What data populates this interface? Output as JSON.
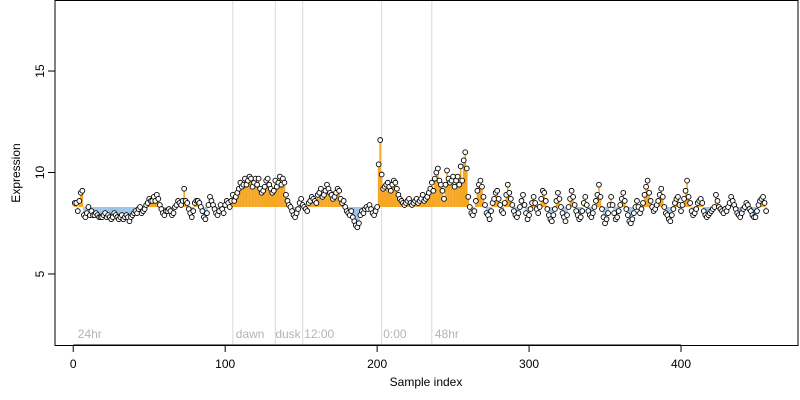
{
  "chart_data": {
    "type": "scatter",
    "title": "",
    "xlabel": "Sample index",
    "ylabel": "Expression",
    "xlim": [
      -12,
      477
    ],
    "ylim": [
      1.5,
      18.5
    ],
    "x_ticks": [
      0,
      100,
      200,
      300,
      400
    ],
    "y_ticks": [
      5,
      10,
      15
    ],
    "grid": false,
    "colors": {
      "baseline_low": "#9dc3e6",
      "baseline_high": "#f5a623",
      "point_edge": "#000000",
      "vertical_line": "#d9d9d9",
      "annotation_text": "#b4b4b4"
    },
    "baseline": 8.3,
    "vertical_lines": [
      105,
      133,
      151,
      203,
      236
    ],
    "annotations": [
      {
        "x": 3,
        "text": "24hr"
      },
      {
        "x": 107,
        "text": "dawn"
      },
      {
        "x": 133,
        "text": "dusk"
      },
      {
        "x": 152,
        "text": "12:00"
      },
      {
        "x": 204,
        "text": "0:00"
      },
      {
        "x": 238,
        "text": "48hr"
      }
    ],
    "series": [
      {
        "x_start": 1,
        "x_step": 1,
        "y": [
          8.5,
          8.5,
          8.1,
          8.6,
          9.0,
          9.1,
          7.9,
          7.8,
          8.0,
          8.3,
          7.9,
          8.1,
          7.9,
          7.9,
          8.0,
          7.9,
          7.8,
          7.8,
          7.8,
          7.9,
          8.0,
          7.8,
          7.9,
          7.8,
          7.7,
          7.8,
          8.0,
          7.9,
          7.8,
          7.7,
          7.8,
          7.9,
          7.7,
          7.8,
          7.9,
          7.8,
          7.6,
          7.8,
          7.9,
          8.0,
          8.1,
          8.0,
          8.2,
          8.3,
          8.0,
          8.1,
          8.2,
          8.4,
          8.5,
          8.7,
          8.6,
          8.6,
          8.8,
          8.6,
          8.9,
          8.7,
          8.4,
          8.2,
          8.0,
          7.9,
          8.1,
          8.1,
          8.2,
          8.1,
          7.9,
          8.0,
          8.3,
          8.4,
          8.6,
          8.5,
          8.4,
          8.6,
          9.2,
          8.6,
          8.5,
          8.2,
          8.0,
          7.8,
          8.1,
          8.5,
          8.6,
          8.6,
          8.5,
          8.3,
          8.1,
          7.8,
          7.7,
          8.0,
          8.4,
          8.8,
          8.6,
          8.4,
          8.2,
          8.0,
          7.9,
          8.1,
          8.4,
          8.2,
          8.0,
          8.4,
          8.6,
          8.5,
          8.3,
          8.6,
          8.9,
          8.6,
          8.8,
          9.0,
          9.2,
          9.5,
          9.3,
          9.4,
          9.7,
          9.4,
          9.6,
          9.8,
          9.7,
          9.3,
          9.5,
          9.7,
          9.4,
          9.7,
          9.2,
          9.0,
          9.1,
          9.3,
          9.6,
          9.7,
          9.4,
          9.2,
          9.0,
          9.1,
          9.6,
          9.3,
          9.5,
          9.8,
          9.4,
          9.7,
          9.5,
          8.9,
          8.6,
          8.4,
          8.3,
          8.1,
          7.9,
          7.8,
          8.0,
          8.2,
          8.5,
          8.7,
          8.4,
          8.3,
          8.2,
          8.1,
          8.5,
          8.6,
          8.8,
          8.7,
          8.6,
          8.5,
          8.9,
          9.0,
          9.2,
          8.8,
          8.9,
          9.1,
          9.4,
          9.2,
          9.0,
          8.9,
          8.7,
          8.8,
          9.0,
          9.2,
          9.1,
          8.7,
          8.5,
          8.6,
          8.3,
          8.1,
          8.0,
          7.9,
          8.1,
          7.8,
          7.6,
          7.4,
          7.3,
          7.5,
          7.9,
          8.1,
          8.0,
          8.2,
          8.3,
          8.2,
          8.4,
          8.2,
          8.0,
          7.9,
          8.1,
          8.3,
          10.4,
          11.6,
          9.9,
          9.2,
          9.3,
          9.4,
          9.5,
          9.3,
          9.1,
          9.4,
          9.6,
          9.5,
          9.2,
          8.9,
          8.7,
          8.6,
          8.5,
          8.4,
          8.5,
          8.6,
          8.7,
          8.5,
          8.4,
          8.5,
          8.6,
          8.7,
          8.5,
          8.6,
          8.7,
          8.9,
          8.6,
          8.7,
          8.8,
          9.0,
          9.2,
          9.5,
          9.1,
          9.7,
          10.0,
          10.2,
          9.6,
          9.4,
          9.1,
          8.7,
          9.4,
          10.1,
          9.7,
          9.5,
          9.6,
          9.8,
          9.3,
          9.6,
          9.8,
          9.4,
          10.3,
          9.6,
          10.6,
          11.0,
          10.2,
          8.8,
          8.3,
          8.0,
          7.9,
          8.1,
          8.6,
          9.1,
          9.4,
          9.6,
          9.3,
          8.8,
          8.4,
          8.0,
          7.9,
          7.7,
          8.1,
          8.5,
          8.7,
          9.0,
          9.1,
          8.7,
          8.4,
          8.1,
          8.0,
          8.5,
          8.9,
          9.4,
          9.0,
          8.7,
          8.4,
          8.1,
          7.9,
          7.8,
          8.0,
          8.3,
          8.6,
          8.9,
          8.4,
          8.0,
          7.7,
          7.9,
          8.2,
          8.5,
          8.8,
          8.5,
          8.2,
          8.0,
          8.3,
          8.7,
          9.1,
          9.0,
          8.6,
          8.2,
          7.9,
          7.7,
          7.6,
          7.9,
          8.2,
          8.6,
          9.0,
          8.7,
          8.3,
          8.0,
          7.8,
          7.6,
          7.9,
          8.3,
          8.7,
          9.1,
          8.8,
          8.4,
          8.1,
          7.9,
          7.7,
          7.8,
          8.1,
          8.5,
          8.8,
          8.4,
          8.1,
          7.9,
          7.8,
          8.0,
          8.3,
          8.6,
          8.9,
          9.4,
          8.8,
          8.2,
          7.8,
          7.5,
          7.7,
          8.0,
          8.4,
          8.8,
          8.4,
          8.0,
          7.7,
          7.8,
          8.1,
          8.4,
          8.7,
          9.0,
          8.6,
          8.2,
          7.9,
          7.6,
          7.5,
          7.7,
          8.0,
          8.3,
          8.6,
          8.3,
          8.0,
          8.2,
          8.5,
          8.9,
          9.3,
          9.6,
          9.0,
          8.6,
          8.3,
          8.1,
          8.2,
          8.4,
          8.6,
          8.9,
          9.2,
          8.8,
          8.3,
          8.0,
          7.9,
          7.7,
          7.6,
          7.9,
          8.2,
          8.5,
          8.7,
          8.8,
          8.4,
          8.1,
          8.4,
          8.7,
          9.1,
          9.6,
          8.8,
          8.5,
          8.1,
          7.9,
          8.0,
          8.2,
          8.5,
          8.6,
          8.7,
          8.5,
          8.1,
          7.9,
          7.8,
          7.9,
          8.0,
          8.1,
          8.2,
          8.3,
          8.9,
          8.6,
          8.3,
          8.2,
          8.1,
          8.0,
          8.2,
          8.1,
          8.3,
          8.5,
          8.8,
          8.6,
          8.4,
          8.2,
          8.0,
          7.9,
          7.8,
          8.0,
          8.2,
          8.3,
          8.5,
          8.4,
          8.2,
          8.1,
          7.9,
          7.8,
          7.8,
          8.1,
          8.4,
          8.6,
          8.7,
          8.8,
          8.5,
          8.1
        ]
      }
    ]
  }
}
